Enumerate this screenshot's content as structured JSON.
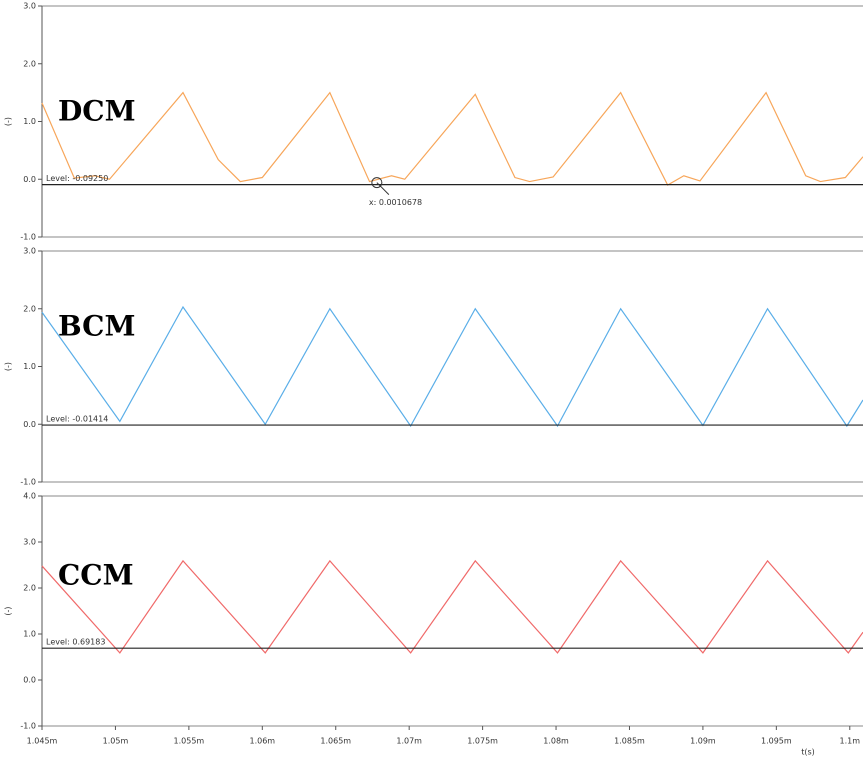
{
  "chart_data": [
    {
      "type": "line",
      "title": "DCM",
      "ylabel": "(-)",
      "x": [
        0.001045,
        0.0010472,
        0.0010486,
        0.0010496,
        0.0010546,
        0.001057,
        0.0010585,
        0.00106,
        0.0010646,
        0.0010673,
        0.0010688,
        0.0010697,
        0.0010745,
        0.0010772,
        0.0010782,
        0.0010798,
        0.0010844,
        0.0010876,
        0.0010887,
        0.0010898,
        0.0010943,
        0.001097,
        0.001098,
        0.0010997,
        0.0011009
      ],
      "series": [
        {
          "color": "#f7a65a",
          "values": [
            1.32,
            0.02,
            0.06,
            0.0,
            1.5,
            0.34,
            -0.04,
            0.03,
            1.5,
            -0.04,
            0.06,
            0.0,
            1.47,
            0.03,
            -0.04,
            0.04,
            1.5,
            -0.1,
            0.06,
            -0.03,
            1.5,
            0.06,
            -0.04,
            0.03,
            0.39
          ]
        }
      ],
      "ylim": [
        -1,
        3
      ],
      "yticks": [
        {
          "value": -1,
          "label": "-1.0"
        },
        {
          "value": 0,
          "label": "0.0"
        },
        {
          "value": 1,
          "label": "1.0"
        },
        {
          "value": 2,
          "label": "2.0"
        },
        {
          "value": 3,
          "label": "3.0"
        }
      ],
      "level": -0.0925,
      "level_label": "Level: -0.09250",
      "annotation": {
        "x": 0.0010678,
        "label": "x: 0.0010678"
      }
    },
    {
      "type": "line",
      "title": "BCM",
      "ylabel": "(-)",
      "x": [
        0.001045,
        0.0010503,
        0.0010546,
        0.0010602,
        0.0010646,
        0.0010701,
        0.0010745,
        0.0010801,
        0.0010844,
        0.00109,
        0.0010944,
        0.0010998,
        0.0011009
      ],
      "series": [
        {
          "color": "#5aaee8",
          "values": [
            1.94,
            0.05,
            2.03,
            0.0,
            2.0,
            -0.03,
            2.0,
            -0.03,
            2.0,
            -0.02,
            2.0,
            -0.03,
            0.42
          ]
        }
      ],
      "ylim": [
        -1,
        3
      ],
      "yticks": [
        {
          "value": -1,
          "label": "-1.0"
        },
        {
          "value": 0,
          "label": "0.0"
        },
        {
          "value": 1,
          "label": "1.0"
        },
        {
          "value": 2,
          "label": "2.0"
        },
        {
          "value": 3,
          "label": "3.0"
        }
      ],
      "level": -0.01414,
      "level_label": "Level: -0.01414"
    },
    {
      "type": "line",
      "title": "CCM",
      "ylabel": "(-)",
      "xlabel": "t(s)",
      "x": [
        0.001045,
        0.0010503,
        0.0010546,
        0.0010602,
        0.0010646,
        0.0010701,
        0.0010745,
        0.0010801,
        0.0010844,
        0.00109,
        0.0010944,
        0.0010999,
        0.0011009
      ],
      "series": [
        {
          "color": "#f06a6a",
          "values": [
            2.48,
            0.59,
            2.59,
            0.59,
            2.59,
            0.59,
            2.59,
            0.59,
            2.59,
            0.59,
            2.59,
            0.59,
            1.04
          ]
        }
      ],
      "ylim": [
        -1,
        4
      ],
      "yticks": [
        {
          "value": -1,
          "label": "-1.0"
        },
        {
          "value": 0,
          "label": "0.0"
        },
        {
          "value": 1,
          "label": "1.0"
        },
        {
          "value": 2,
          "label": "2.0"
        },
        {
          "value": 3,
          "label": "3.0"
        },
        {
          "value": 4,
          "label": "4.0"
        }
      ],
      "level": 0.69183,
      "level_label": "Level: 0.69183",
      "xlim": [
        0.001045,
        0.0011009
      ],
      "xticks": [
        {
          "value": 0.001045,
          "label": "1.045m"
        },
        {
          "value": 0.00105,
          "label": "1.05m"
        },
        {
          "value": 0.001055,
          "label": "1.055m"
        },
        {
          "value": 0.00106,
          "label": "1.06m"
        },
        {
          "value": 0.001065,
          "label": "1.065m"
        },
        {
          "value": 0.00107,
          "label": "1.07m"
        },
        {
          "value": 0.001075,
          "label": "1.075m"
        },
        {
          "value": 0.00108,
          "label": "1.08m"
        },
        {
          "value": 0.001085,
          "label": "1.085m"
        },
        {
          "value": 0.00109,
          "label": "1.09m"
        },
        {
          "value": 0.001095,
          "label": "1.095m"
        },
        {
          "value": 0.0011,
          "label": "1.1m"
        }
      ]
    }
  ]
}
